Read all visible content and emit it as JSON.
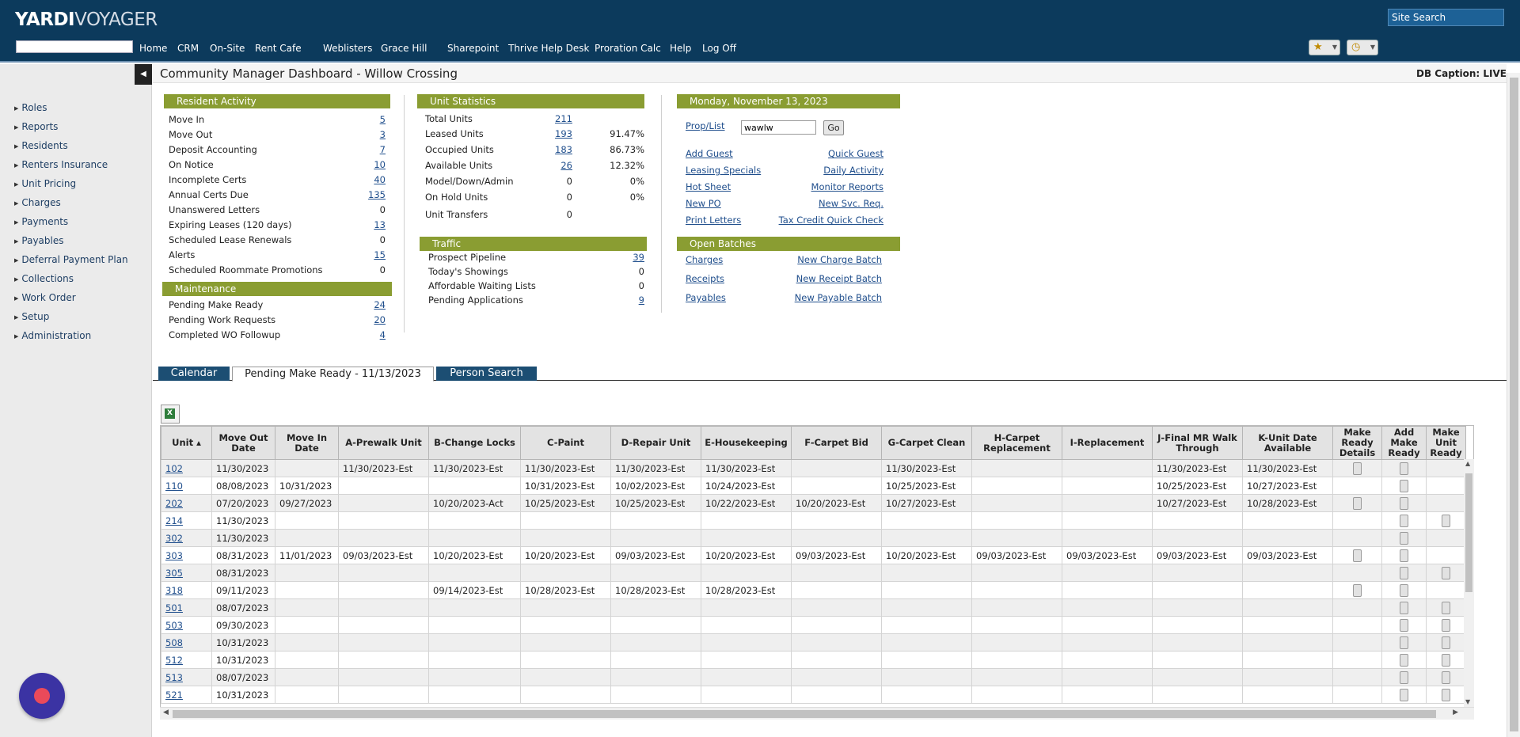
{
  "header": {
    "logo_bold": "YARDI",
    "logo_light": "VOYAGER",
    "site_search_placeholder": "Site Search",
    "nav": [
      "Home",
      "CRM",
      "On-Site",
      "Rent Cafe",
      "Weblisters",
      "Grace Hill",
      "Sharepoint",
      "Thrive Help Desk",
      "Proration Calc",
      "Help",
      "Log Off"
    ],
    "star_icon": "★",
    "history_icon": "◷"
  },
  "sidebar": {
    "items": [
      "Roles",
      "Reports",
      "Residents",
      "Renters Insurance",
      "Unit Pricing",
      "Charges",
      "Payments",
      "Payables",
      "Deferral Payment Plan",
      "Collections",
      "Work Order",
      "Setup",
      "Administration"
    ]
  },
  "page": {
    "title": "Community Manager Dashboard - Willow Crossing",
    "db_caption": "DB Caption: LIVE"
  },
  "resident_activity": {
    "title": "Resident Activity",
    "rows": [
      {
        "label": "Move In",
        "value": "5",
        "link": true
      },
      {
        "label": "Move Out",
        "value": "3",
        "link": true
      },
      {
        "label": "Deposit Accounting",
        "value": "7",
        "link": true
      },
      {
        "label": "On Notice",
        "value": "10",
        "link": true
      },
      {
        "label": "Incomplete Certs",
        "value": "40",
        "link": true
      },
      {
        "label": "Annual Certs Due",
        "value": "135",
        "link": true
      },
      {
        "label": "Unanswered Letters",
        "value": "0",
        "link": false
      },
      {
        "label": "Expiring Leases (120 days)",
        "value": "13",
        "link": true
      },
      {
        "label": "Scheduled Lease Renewals",
        "value": "0",
        "link": false
      },
      {
        "label": "Alerts",
        "value": "15",
        "link": true
      },
      {
        "label": "Scheduled Roommate Promotions",
        "value": "0",
        "link": false
      }
    ]
  },
  "maintenance": {
    "title": "Maintenance",
    "rows": [
      {
        "label": "Pending Make Ready",
        "value": "24"
      },
      {
        "label": "Pending Work Requests",
        "value": "20"
      },
      {
        "label": "Completed WO Followup",
        "value": "4"
      }
    ]
  },
  "unit_statistics": {
    "title": "Unit Statistics",
    "rows": [
      {
        "label": "Total Units",
        "value": "211",
        "pct": "",
        "link": true
      },
      {
        "label": "Leased Units",
        "value": "193",
        "pct": "91.47%",
        "link": true
      },
      {
        "label": "Occupied Units",
        "value": "183",
        "pct": "86.73%",
        "link": true
      },
      {
        "label": "Available Units",
        "value": "26",
        "pct": "12.32%",
        "link": true
      },
      {
        "label": "Model/Down/Admin",
        "value": "0",
        "pct": "0%",
        "link": false
      },
      {
        "label": "On Hold Units",
        "value": "0",
        "pct": "0%",
        "link": false
      },
      {
        "label": "Unit Transfers",
        "value": "0",
        "pct": "",
        "link": false
      }
    ]
  },
  "traffic": {
    "title": "Traffic",
    "rows": [
      {
        "label": "Prospect Pipeline",
        "value": "39",
        "link": true
      },
      {
        "label": "Today's Showings",
        "value": "0",
        "link": false
      },
      {
        "label": "Affordable Waiting Lists",
        "value": "0",
        "link": false
      },
      {
        "label": "Pending Applications",
        "value": "9",
        "link": true
      }
    ]
  },
  "date_panel": {
    "title": "Monday, November 13, 2023",
    "prop_list_label": "Prop/List",
    "prop_value": "wawlw",
    "go_label": "Go",
    "links": [
      [
        "Add Guest",
        "Quick Guest"
      ],
      [
        "Leasing Specials",
        "Daily Activity"
      ],
      [
        "Hot Sheet",
        "Monitor Reports"
      ],
      [
        "New PO",
        "New Svc. Req."
      ],
      [
        "Print Letters",
        "Tax Credit Quick Check"
      ]
    ]
  },
  "open_batches": {
    "title": "Open Batches",
    "links": [
      [
        "Charges",
        "New Charge Batch"
      ],
      [
        "Receipts",
        "New Receipt Batch"
      ],
      [
        "Payables",
        "New Payable Batch"
      ]
    ]
  },
  "tabs": [
    "Calendar",
    "Pending Make Ready - 11/13/2023",
    "Person Search"
  ],
  "grid": {
    "headers": [
      "Unit ▴",
      "Move Out Date",
      "Move In Date",
      "A-Prewalk Unit",
      "B-Change Locks",
      "C-Paint",
      "D-Repair Unit",
      "E-Housekeeping",
      "F-Carpet Bid",
      "G-Carpet Clean",
      "H-Carpet Replacement",
      "I-Replacement",
      "J-Final MR Walk Through",
      "K-Unit Date Available",
      "Make Ready Details",
      "Add Make Ready",
      "Make Unit Ready"
    ],
    "rows": [
      [
        "102",
        "11/30/2023",
        "",
        "11/30/2023-Est",
        "11/30/2023-Est",
        "11/30/2023-Est",
        "11/30/2023-Est",
        "11/30/2023-Est",
        "",
        "11/30/2023-Est",
        "",
        "",
        "11/30/2023-Est",
        "11/30/2023-Est",
        "btn",
        "btn",
        ""
      ],
      [
        "110",
        "08/08/2023",
        "10/31/2023",
        "",
        "",
        "10/31/2023-Est",
        "10/02/2023-Est",
        "10/24/2023-Est",
        "",
        "10/25/2023-Est",
        "",
        "",
        "10/25/2023-Est",
        "10/27/2023-Est",
        "",
        "btn",
        ""
      ],
      [
        "202",
        "07/20/2023",
        "09/27/2023",
        "",
        "10/20/2023-Act",
        "10/25/2023-Est",
        "10/25/2023-Est",
        "10/22/2023-Est",
        "10/20/2023-Est",
        "10/27/2023-Est",
        "",
        "",
        "10/27/2023-Est",
        "10/28/2023-Est",
        "btn",
        "btn",
        ""
      ],
      [
        "214",
        "11/30/2023",
        "",
        "",
        "",
        "",
        "",
        "",
        "",
        "",
        "",
        "",
        "",
        "",
        "",
        "btn",
        "btn"
      ],
      [
        "302",
        "11/30/2023",
        "",
        "",
        "",
        "",
        "",
        "",
        "",
        "",
        "",
        "",
        "",
        "",
        "",
        "btn",
        ""
      ],
      [
        "303",
        "08/31/2023",
        "11/01/2023",
        "09/03/2023-Est",
        "10/20/2023-Est",
        "10/20/2023-Est",
        "09/03/2023-Est",
        "10/20/2023-Est",
        "09/03/2023-Est",
        "10/20/2023-Est",
        "09/03/2023-Est",
        "09/03/2023-Est",
        "09/03/2023-Est",
        "09/03/2023-Est",
        "btn",
        "btn",
        ""
      ],
      [
        "305",
        "08/31/2023",
        "",
        "",
        "",
        "",
        "",
        "",
        "",
        "",
        "",
        "",
        "",
        "",
        "",
        "btn",
        "btn"
      ],
      [
        "318",
        "09/11/2023",
        "",
        "",
        "09/14/2023-Est",
        "10/28/2023-Est",
        "10/28/2023-Est",
        "10/28/2023-Est",
        "",
        "",
        "",
        "",
        "",
        "",
        "btn",
        "btn",
        ""
      ],
      [
        "501",
        "08/07/2023",
        "",
        "",
        "",
        "",
        "",
        "",
        "",
        "",
        "",
        "",
        "",
        "",
        "",
        "btn",
        "btn"
      ],
      [
        "503",
        "09/30/2023",
        "",
        "",
        "",
        "",
        "",
        "",
        "",
        "",
        "",
        "",
        "",
        "",
        "",
        "btn",
        "btn"
      ],
      [
        "508",
        "10/31/2023",
        "",
        "",
        "",
        "",
        "",
        "",
        "",
        "",
        "",
        "",
        "",
        "",
        "",
        "btn",
        "btn"
      ],
      [
        "512",
        "10/31/2023",
        "",
        "",
        "",
        "",
        "",
        "",
        "",
        "",
        "",
        "",
        "",
        "",
        "",
        "btn",
        "btn"
      ],
      [
        "513",
        "08/07/2023",
        "",
        "",
        "",
        "",
        "",
        "",
        "",
        "",
        "",
        "",
        "",
        "",
        "",
        "btn",
        "btn"
      ],
      [
        "521",
        "10/31/2023",
        "",
        "",
        "",
        "",
        "",
        "",
        "",
        "",
        "",
        "",
        "",
        "",
        "",
        "btn",
        "btn"
      ]
    ]
  }
}
